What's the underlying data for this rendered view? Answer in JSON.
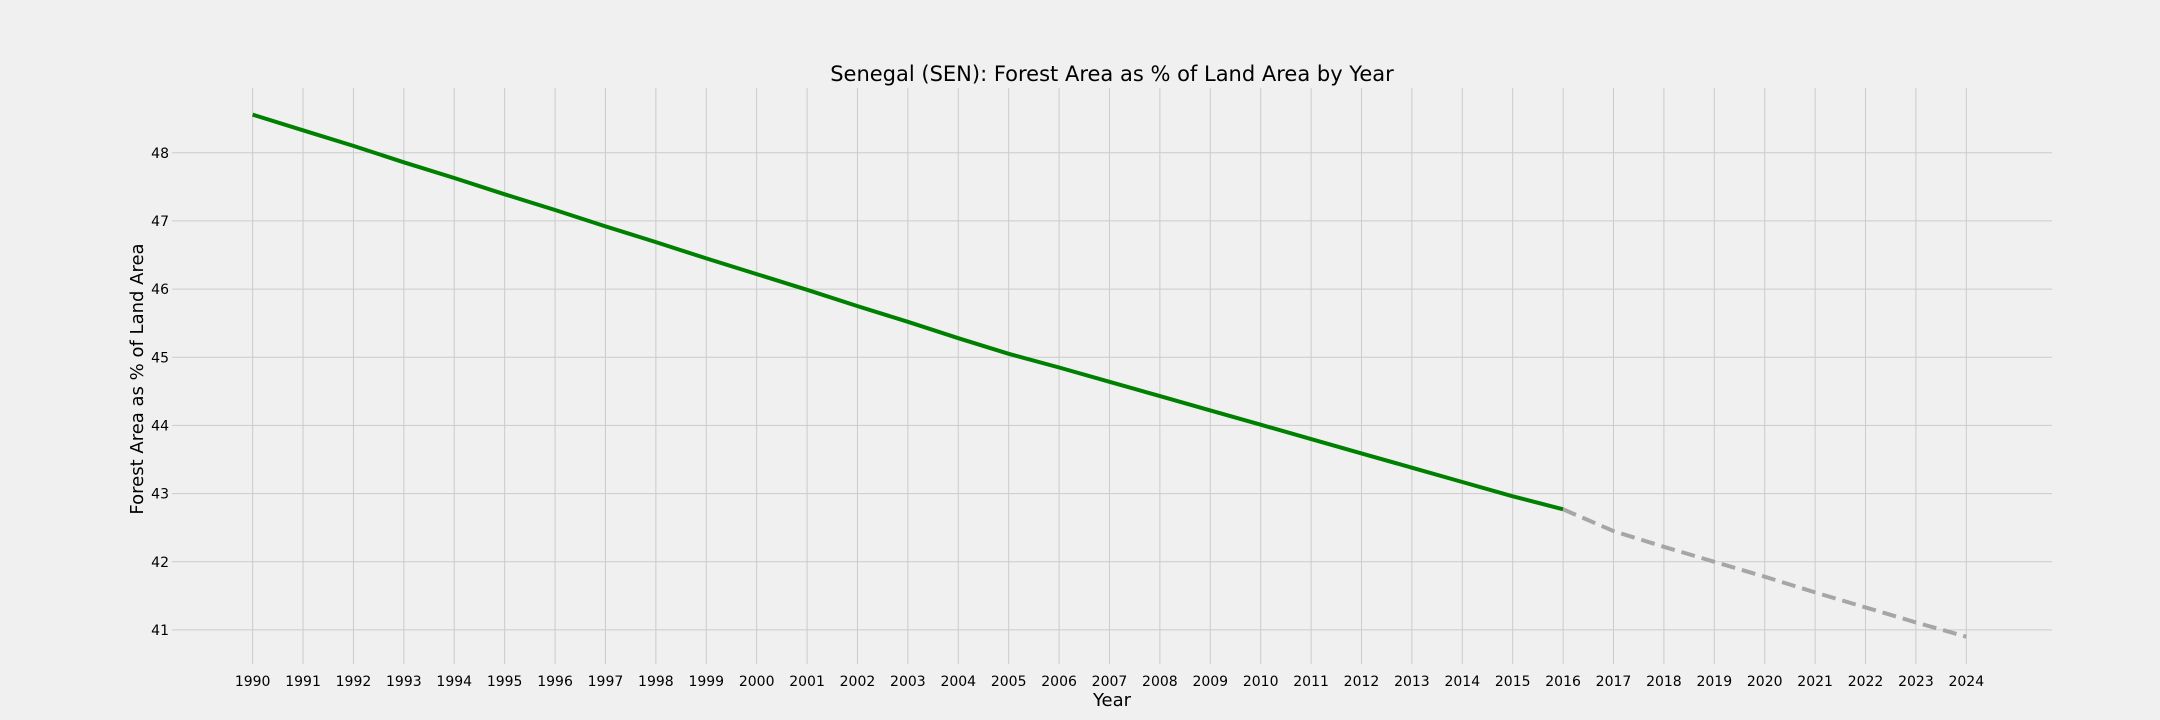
{
  "chart_data": {
    "type": "line",
    "title": "Senegal (SEN): Forest Area as % of Land Area by Year",
    "xlabel": "Year",
    "ylabel": "Forest Area as % of Land Area",
    "x_ticks": [
      "1990",
      "1991",
      "1992",
      "1993",
      "1994",
      "1995",
      "1996",
      "1997",
      "1998",
      "1999",
      "2000",
      "2001",
      "2002",
      "2003",
      "2004",
      "2005",
      "2006",
      "2007",
      "2008",
      "2009",
      "2010",
      "2011",
      "2012",
      "2013",
      "2014",
      "2015",
      "2016",
      "2017",
      "2018",
      "2019",
      "2020",
      "2021",
      "2022",
      "2023",
      "2024"
    ],
    "y_ticks": [
      41,
      42,
      43,
      44,
      45,
      46,
      47,
      48
    ],
    "xlim": [
      1988.4,
      2025.7
    ],
    "ylim": [
      40.5,
      48.95
    ],
    "grid": true,
    "series": [
      {
        "style": "solid",
        "color": "#008000",
        "x": [
          1990,
          1991,
          1992,
          1993,
          1994,
          1995,
          1996,
          1997,
          1998,
          1999,
          2000,
          2001,
          2002,
          2003,
          2004,
          2005,
          2006,
          2007,
          2008,
          2009,
          2010,
          2011,
          2012,
          2013,
          2014,
          2015,
          2016
        ],
        "y": [
          48.56,
          48.33,
          48.1,
          47.86,
          47.63,
          47.39,
          47.16,
          46.92,
          46.69,
          46.45,
          46.22,
          45.99,
          45.75,
          45.52,
          45.28,
          45.05,
          44.85,
          44.64,
          44.43,
          44.22,
          44.01,
          43.8,
          43.59,
          43.38,
          43.17,
          42.96,
          42.77
        ]
      },
      {
        "style": "dashed",
        "color": "#a6a6a6",
        "x": [
          2016,
          2017,
          2018,
          2019,
          2020,
          2021,
          2022,
          2023,
          2024
        ],
        "y": [
          42.77,
          42.45,
          42.22,
          42.0,
          41.78,
          41.55,
          41.33,
          41.11,
          40.9
        ]
      }
    ]
  }
}
